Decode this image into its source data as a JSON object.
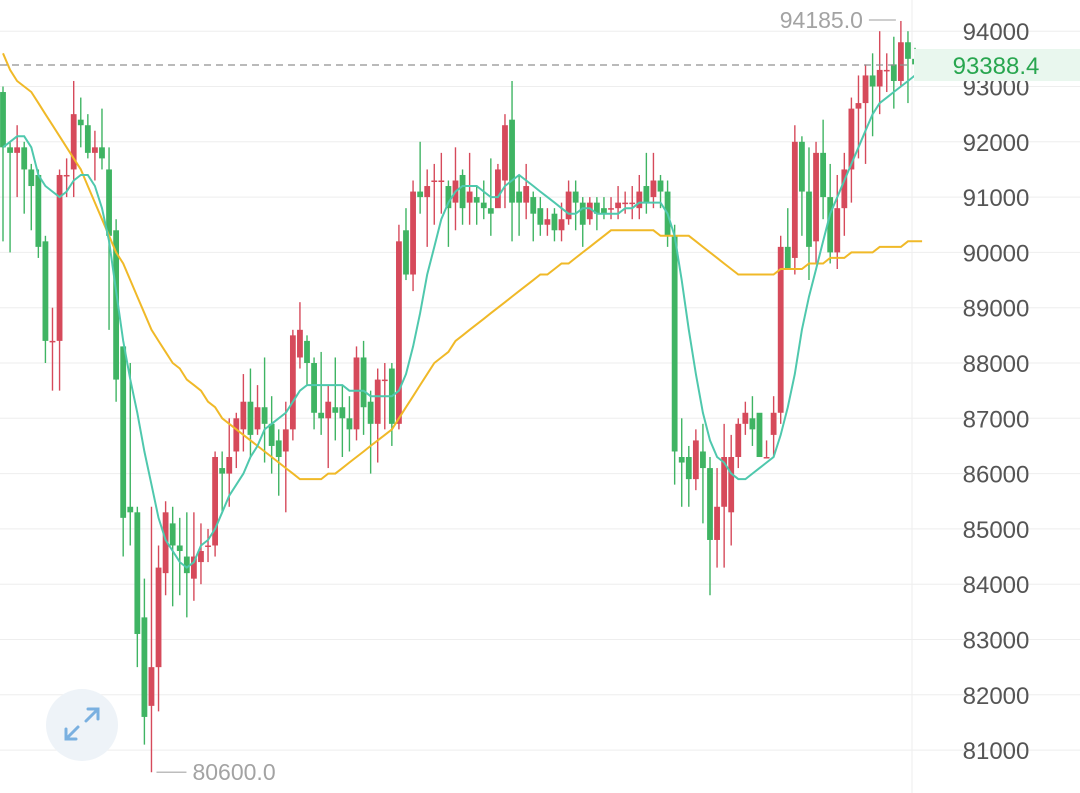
{
  "colors": {
    "up": "#d64a5b",
    "down": "#3fb463",
    "ma_short": "#4fc8ad",
    "ma_long": "#f0b928",
    "grid": "#eeeeee",
    "axis_text": "#555555",
    "marker_text": "#a3a3a3",
    "price_text": "#28a64f",
    "price_bg": "#e9f7ee",
    "price_line": "#909090"
  },
  "controls": {
    "expand_icon": "expand-arrows-icon"
  },
  "chart_data": {
    "type": "candlestick",
    "ylim": [
      80450,
      94400
    ],
    "y_ticks": [
      94000,
      93000,
      92000,
      91000,
      90000,
      89000,
      88000,
      87000,
      86000,
      85000,
      84000,
      83000,
      82000,
      81000
    ],
    "y_tick_labels": [
      "94000",
      "93000",
      "92000",
      "91000",
      "90000",
      "89000",
      "88000",
      "87000",
      "86000",
      "85000",
      "84000",
      "83000",
      "82000",
      "81000"
    ],
    "last_price": 93388.4,
    "last_price_label": "93388.4",
    "high_marker": {
      "candle": 127,
      "value": 94185.0,
      "label": "94185.0"
    },
    "low_marker": {
      "candle": 21,
      "value": 80600.0,
      "label": "80600.0"
    },
    "candles": [
      [
        92900,
        91900,
        93000,
        90200
      ],
      [
        91900,
        91800,
        92000,
        90000
      ],
      [
        91800,
        91900,
        92300,
        91000
      ],
      [
        91900,
        91500,
        92000,
        90700
      ],
      [
        91500,
        91200,
        91600,
        90400
      ],
      [
        91400,
        90100,
        91500,
        89900
      ],
      [
        90200,
        88400,
        90300,
        88000
      ],
      [
        88400,
        88400,
        89000,
        87500
      ],
      [
        88400,
        91400,
        91500,
        87500
      ],
      [
        91400,
        91400,
        91700,
        91000
      ],
      [
        91500,
        92500,
        93100,
        91000
      ],
      [
        92400,
        92300,
        92800,
        91900
      ],
      [
        92300,
        91800,
        92500,
        91700
      ],
      [
        91800,
        91900,
        92200,
        91300
      ],
      [
        91900,
        91700,
        92600,
        91500
      ],
      [
        91500,
        90300,
        91900,
        88600
      ],
      [
        90400,
        87700,
        90600,
        87300
      ],
      [
        88300,
        85200,
        88300,
        84500
      ],
      [
        85400,
        85300,
        88000,
        84700
      ],
      [
        85300,
        83100,
        85400,
        82500
      ],
      [
        83400,
        81600,
        84100,
        81100
      ],
      [
        81800,
        82500,
        85400,
        80600
      ],
      [
        82500,
        84300,
        84700,
        81700
      ],
      [
        84200,
        85300,
        85500,
        83800
      ],
      [
        85100,
        84700,
        85400,
        83600
      ],
      [
        84700,
        84600,
        85200,
        83800
      ],
      [
        84500,
        84200,
        85300,
        83400
      ],
      [
        84100,
        84500,
        85300,
        83700
      ],
      [
        84400,
        84600,
        85100,
        84000
      ],
      [
        84700,
        84700,
        85000,
        84400
      ],
      [
        84700,
        86300,
        86400,
        84500
      ],
      [
        86100,
        86000,
        86400,
        85300
      ],
      [
        86000,
        86300,
        87000,
        85400
      ],
      [
        86400,
        87000,
        87100,
        86100
      ],
      [
        86800,
        87300,
        87800,
        86400
      ],
      [
        87300,
        86700,
        87900,
        86300
      ],
      [
        86800,
        87200,
        87600,
        86700
      ],
      [
        87200,
        86900,
        88100,
        86200
      ],
      [
        86900,
        86500,
        87400,
        86000
      ],
      [
        86600,
        86300,
        86800,
        85600
      ],
      [
        86400,
        86800,
        87300,
        85300
      ],
      [
        86800,
        88500,
        88600,
        86600
      ],
      [
        88100,
        88600,
        89100,
        87900
      ],
      [
        88400,
        88000,
        88500,
        87600
      ],
      [
        88000,
        87100,
        88100,
        86800
      ],
      [
        87100,
        87000,
        88200,
        86700
      ],
      [
        87000,
        87300,
        87600,
        86100
      ],
      [
        87200,
        87100,
        88100,
        86600
      ],
      [
        87200,
        87000,
        87600,
        86300
      ],
      [
        87000,
        86800,
        87400,
        86400
      ],
      [
        86800,
        88100,
        88300,
        86600
      ],
      [
        88100,
        87200,
        88400,
        86700
      ],
      [
        87300,
        86900,
        87500,
        86000
      ],
      [
        86900,
        87700,
        87900,
        86200
      ],
      [
        87700,
        87700,
        88000,
        86800
      ],
      [
        87900,
        86900,
        88000,
        86500
      ],
      [
        86900,
        90200,
        90500,
        86800
      ],
      [
        90400,
        89600,
        90800,
        89500
      ],
      [
        89600,
        91100,
        91300,
        89300
      ],
      [
        91100,
        91000,
        92000,
        90700
      ],
      [
        91000,
        91200,
        91500,
        90100
      ],
      [
        91300,
        91300,
        91600,
        90500
      ],
      [
        91300,
        91300,
        91800,
        90700
      ],
      [
        91200,
        90800,
        91300,
        90100
      ],
      [
        90900,
        91300,
        91900,
        90400
      ],
      [
        91400,
        90800,
        91500,
        90500
      ],
      [
        90900,
        91100,
        91800,
        90500
      ],
      [
        91000,
        90900,
        91200,
        90500
      ],
      [
        90900,
        90800,
        91300,
        90600
      ],
      [
        90800,
        90700,
        91700,
        90300
      ],
      [
        90800,
        91500,
        91600,
        90900
      ],
      [
        91300,
        92300,
        92500,
        90800
      ],
      [
        92400,
        90900,
        93100,
        90200
      ],
      [
        91100,
        90900,
        91400,
        90300
      ],
      [
        90900,
        91200,
        91600,
        90600
      ],
      [
        91000,
        90700,
        91100,
        90200
      ],
      [
        90800,
        90500,
        91000,
        90300
      ],
      [
        90500,
        90600,
        90800,
        90300
      ],
      [
        90700,
        90400,
        90800,
        90200
      ],
      [
        90400,
        90600,
        90900,
        90200
      ],
      [
        90600,
        91100,
        91300,
        90500
      ],
      [
        91100,
        90900,
        91300,
        90400
      ],
      [
        90900,
        90500,
        91000,
        90100
      ],
      [
        90600,
        90900,
        91000,
        90500
      ],
      [
        90900,
        90700,
        91000,
        90400
      ],
      [
        90800,
        90700,
        91000,
        90600
      ],
      [
        90800,
        90800,
        91000,
        90600
      ],
      [
        90800,
        90900,
        91200,
        90600
      ],
      [
        90900,
        90900,
        91100,
        90700
      ],
      [
        90900,
        90900,
        91200,
        90600
      ],
      [
        90800,
        91100,
        91400,
        90600
      ],
      [
        91200,
        90900,
        91800,
        90700
      ],
      [
        91000,
        91300,
        91800,
        90800
      ],
      [
        91300,
        91100,
        91400,
        90800
      ],
      [
        91100,
        90300,
        91300,
        90100
      ],
      [
        90300,
        86400,
        90500,
        85800
      ],
      [
        86300,
        86200,
        87000,
        85400
      ],
      [
        86300,
        85900,
        86500,
        85400
      ],
      [
        85900,
        86600,
        86800,
        85700
      ],
      [
        86400,
        86100,
        86900,
        85100
      ],
      [
        86100,
        84800,
        86300,
        83800
      ],
      [
        84800,
        85400,
        86100,
        84300
      ],
      [
        85400,
        86300,
        86900,
        84300
      ],
      [
        85300,
        86300,
        86700,
        84700
      ],
      [
        86300,
        86900,
        87000,
        86100
      ],
      [
        86900,
        87100,
        87300,
        86700
      ],
      [
        87000,
        86800,
        87400,
        86500
      ],
      [
        87100,
        86300,
        86900,
        86300
      ],
      [
        86300,
        86300,
        86600,
        86300
      ],
      [
        86700,
        87100,
        87400,
        86300
      ],
      [
        87100,
        90100,
        90300,
        86900
      ],
      [
        90100,
        89700,
        90800,
        89700
      ],
      [
        89900,
        92000,
        92300,
        89600
      ],
      [
        92000,
        91100,
        92100,
        90300
      ],
      [
        91100,
        90100,
        91900,
        89500
      ],
      [
        90200,
        91800,
        92000,
        89800
      ],
      [
        91800,
        91000,
        92400,
        90600
      ],
      [
        91000,
        90000,
        91600,
        89800
      ],
      [
        90000,
        90800,
        91400,
        89700
      ],
      [
        90800,
        91500,
        91800,
        90300
      ],
      [
        91500,
        92600,
        92800,
        90900
      ],
      [
        92600,
        92700,
        93200,
        91700
      ],
      [
        92700,
        93200,
        93400,
        91600
      ],
      [
        93200,
        93000,
        93600,
        92100
      ],
      [
        93000,
        93300,
        94000,
        92500
      ],
      [
        93300,
        93300,
        93600,
        92900
      ],
      [
        93400,
        93100,
        93900,
        92600
      ],
      [
        93100,
        93800,
        94185,
        93000
      ],
      [
        93800,
        93500,
        94000,
        92700
      ],
      [
        93500,
        93400,
        93700,
        93100
      ],
      [
        93300,
        93400,
        93600,
        93200
      ]
    ],
    "ma_short": [
      91900,
      92000,
      92100,
      92100,
      91900,
      91400,
      91200,
      91100,
      91000,
      91100,
      91300,
      91400,
      91400,
      91200,
      90800,
      90200,
      89300,
      88400,
      87700,
      87100,
      86400,
      85800,
      85200,
      84800,
      84600,
      84400,
      84300,
      84400,
      84700,
      84800,
      85000,
      85300,
      85600,
      85800,
      86000,
      86300,
      86500,
      86800,
      86900,
      87000,
      87100,
      87300,
      87500,
      87600,
      87600,
      87600,
      87600,
      87600,
      87600,
      87500,
      87500,
      87500,
      87400,
      87400,
      87400,
      87400,
      87500,
      87800,
      88300,
      88900,
      89600,
      90100,
      90600,
      90900,
      91100,
      91200,
      91200,
      91200,
      91100,
      91000,
      91000,
      91200,
      91300,
      91400,
      91300,
      91200,
      91100,
      91000,
      90900,
      90800,
      90700,
      90700,
      90800,
      90800,
      90700,
      90700,
      90700,
      90700,
      90800,
      90800,
      90900,
      90900,
      90900,
      90900,
      90700,
      90300,
      89500,
      88600,
      87800,
      87100,
      86600,
      86300,
      86200,
      86000,
      85900,
      85900,
      86000,
      86100,
      86200,
      86300,
      86700,
      87200,
      87800,
      88600,
      89200,
      89700,
      90200,
      90700,
      91000,
      91300,
      91600,
      91900,
      92200,
      92500,
      92700,
      92800,
      92900,
      93000,
      93100,
      93200,
      93300
    ],
    "ma_long": [
      93600,
      93300,
      93100,
      93000,
      92900,
      92700,
      92500,
      92300,
      92100,
      91900,
      91700,
      91500,
      91200,
      90900,
      90600,
      90300,
      90000,
      89800,
      89500,
      89200,
      88900,
      88600,
      88400,
      88200,
      88000,
      87900,
      87700,
      87600,
      87500,
      87300,
      87200,
      87000,
      86900,
      86800,
      86700,
      86600,
      86500,
      86400,
      86300,
      86200,
      86100,
      86000,
      85900,
      85900,
      85900,
      85900,
      86000,
      86000,
      86100,
      86200,
      86300,
      86400,
      86500,
      86600,
      86700,
      86800,
      87000,
      87200,
      87400,
      87600,
      87800,
      88000,
      88100,
      88200,
      88400,
      88500,
      88600,
      88700,
      88800,
      88900,
      89000,
      89100,
      89200,
      89300,
      89400,
      89500,
      89600,
      89600,
      89700,
      89800,
      89800,
      89900,
      90000,
      90100,
      90200,
      90300,
      90400,
      90400,
      90400,
      90400,
      90400,
      90400,
      90400,
      90300,
      90300,
      90300,
      90300,
      90300,
      90200,
      90100,
      90000,
      89900,
      89800,
      89700,
      89600,
      89600,
      89600,
      89600,
      89600,
      89600,
      89700,
      89700,
      89700,
      89700,
      89800,
      89800,
      89800,
      89900,
      89900,
      89900,
      90000,
      90000,
      90000,
      90000,
      90100,
      90100,
      90100,
      90100,
      90200,
      90200,
      90200
    ]
  }
}
